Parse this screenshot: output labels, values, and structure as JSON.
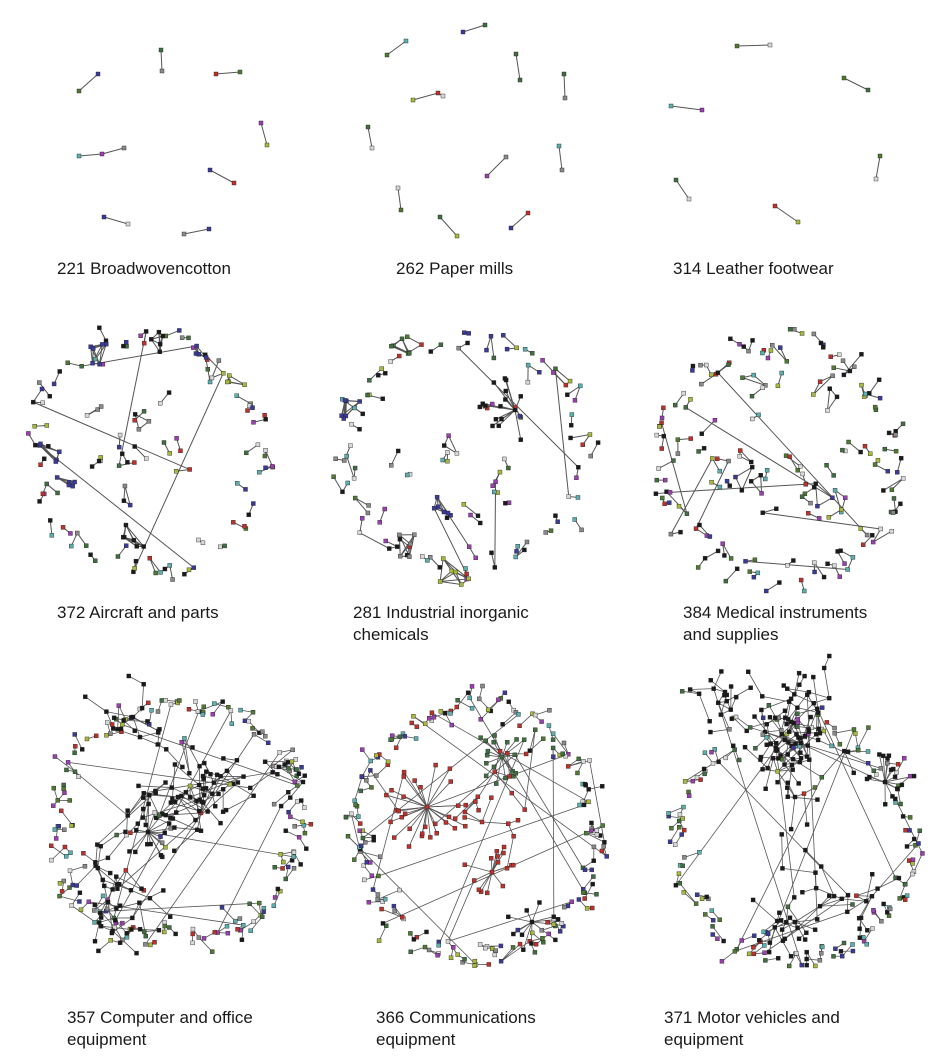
{
  "panels": [
    {
      "id": "p1",
      "caption": [
        "221 Broadwovencotton"
      ]
    },
    {
      "id": "p2",
      "caption": [
        "262 Paper mills"
      ]
    },
    {
      "id": "p3",
      "caption": [
        "314 Leather footwear"
      ]
    },
    {
      "id": "p4",
      "caption": [
        "372 Aircraft and parts"
      ]
    },
    {
      "id": "p5",
      "caption": [
        "281 Industrial inorganic",
        "chemicals"
      ]
    },
    {
      "id": "p6",
      "caption": [
        "384 Medical instruments",
        "and supplies"
      ]
    },
    {
      "id": "p7",
      "caption": [
        "357 Computer and office",
        "equipment"
      ]
    },
    {
      "id": "p8",
      "caption": [
        "366 Communications",
        "equipment"
      ]
    },
    {
      "id": "p9",
      "caption": [
        "371 Motor vehicles and",
        "equipment"
      ]
    }
  ],
  "colors": {
    "edge": "#555555",
    "node_palette": [
      "#1a1a1a",
      "#3a3a9a",
      "#c0302a",
      "#4f7a32",
      "#9b3fb0",
      "#5ab0b0",
      "#a8b83a",
      "#8a8a8a",
      "#3f6f3f",
      "#d8d8d8"
    ]
  }
}
